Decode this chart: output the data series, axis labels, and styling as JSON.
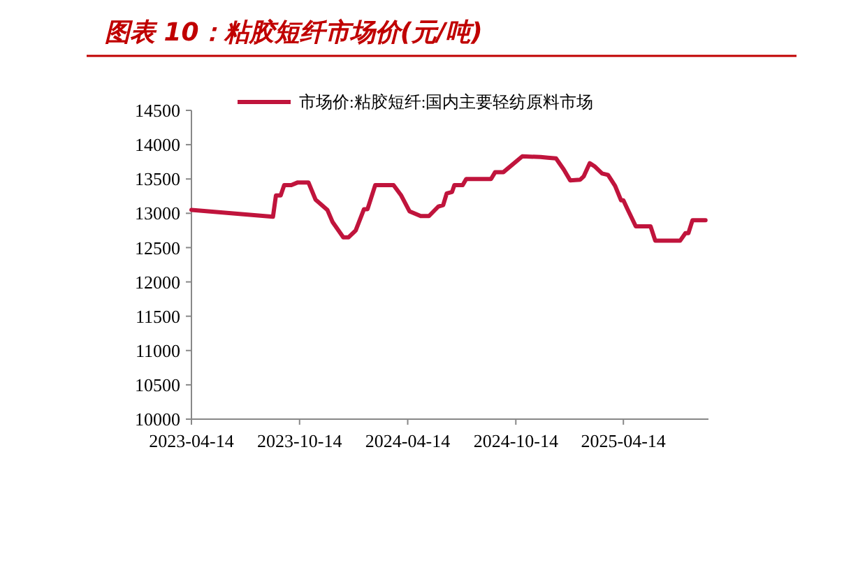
{
  "chart_data": {
    "type": "line",
    "title": "图表 10：粘胶短纤市场价(元/吨)",
    "legend": "top",
    "grid": false,
    "marker": "none",
    "line_style": "solid",
    "xlim": [
      "2023-04-14",
      "2025-09-05"
    ],
    "xticks": [
      "2023-04-14",
      "2023-10-14",
      "2024-04-14",
      "2024-10-14",
      "2025-04-14"
    ],
    "ylim": [
      10000,
      14500
    ],
    "yticks": [
      10000,
      10500,
      11000,
      11500,
      12000,
      12500,
      13000,
      13500,
      14000,
      14500
    ],
    "series": [
      {
        "name": "市场价:粘胶短纤:国内主要轻纺原料市场",
        "color": "#c0143c",
        "x": [
          "2023-04-14",
          "2023-08-30",
          "2023-09-04",
          "2023-09-12",
          "2023-09-18",
          "2023-09-30",
          "2023-10-11",
          "2023-10-29",
          "2023-11-10",
          "2023-11-30",
          "2023-12-09",
          "2023-12-27",
          "2024-01-05",
          "2024-01-17",
          "2024-01-31",
          "2024-02-06",
          "2024-02-19",
          "2024-03-21",
          "2024-04-03",
          "2024-04-17",
          "2024-05-06",
          "2024-05-20",
          "2024-06-05",
          "2024-06-13",
          "2024-06-19",
          "2024-06-28",
          "2024-07-02",
          "2024-07-16",
          "2024-07-22",
          "2024-09-02",
          "2024-09-09",
          "2024-09-23",
          "2024-10-25",
          "2024-11-25",
          "2024-12-07",
          "2024-12-21",
          "2025-01-03",
          "2025-01-14",
          "2025-01-31",
          "2025-02-06",
          "2025-02-16",
          "2025-02-25",
          "2025-03-09",
          "2025-03-19",
          "2025-03-31",
          "2025-04-10",
          "2025-04-14",
          "2025-04-21",
          "2025-05-05",
          "2025-05-30",
          "2025-06-07",
          "2025-07-19",
          "2025-07-28",
          "2025-08-02",
          "2025-08-09",
          "2025-08-31"
        ],
        "values": [
          13050,
          12950,
          13260,
          13260,
          13410,
          13410,
          13450,
          13450,
          13200,
          13050,
          12870,
          12650,
          12650,
          12750,
          13060,
          13060,
          13410,
          13410,
          13260,
          13030,
          12960,
          12960,
          13100,
          13120,
          13290,
          13310,
          13410,
          13410,
          13500,
          13500,
          13600,
          13600,
          13830,
          13820,
          13810,
          13800,
          13640,
          13480,
          13490,
          13540,
          13730,
          13680,
          13580,
          13560,
          13400,
          13190,
          13190,
          13060,
          12810,
          12810,
          12600,
          12600,
          12710,
          12710,
          12900,
          12900
        ]
      }
    ]
  }
}
